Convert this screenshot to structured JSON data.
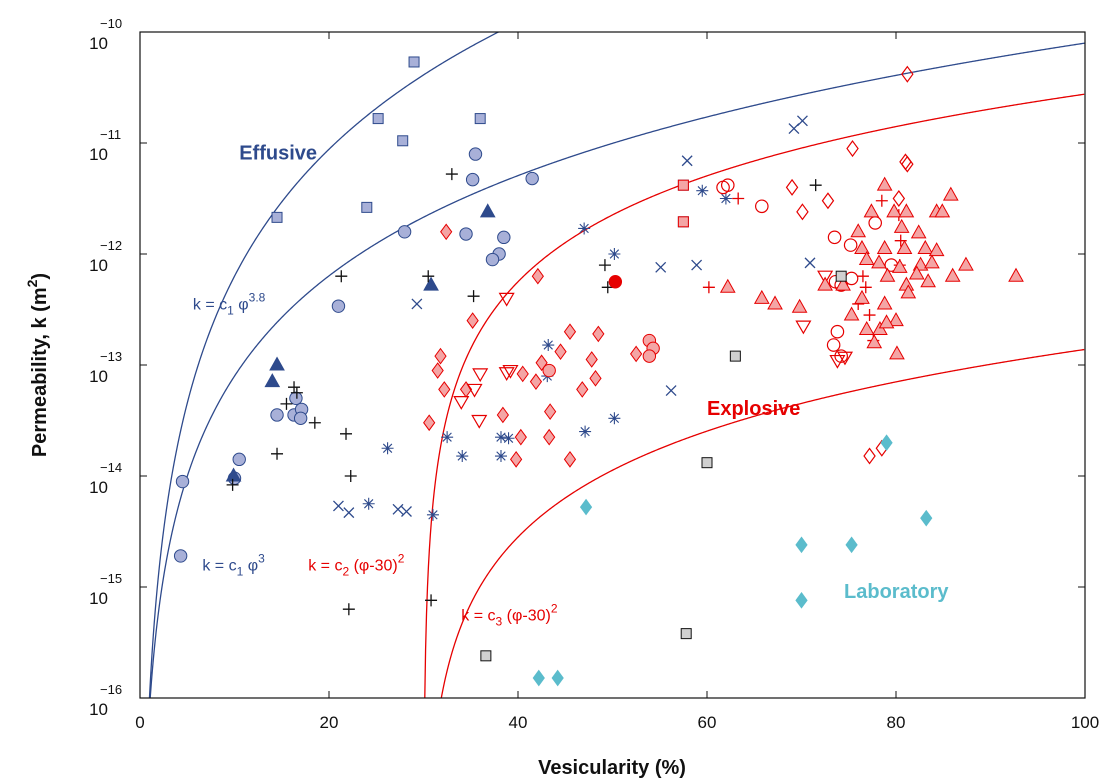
{
  "chart_data": {
    "type": "scatter",
    "xlabel": "Vesicularity (%)",
    "ylabel": {
      "base": "Permeability, k (m",
      "exp": "2",
      "close": ")"
    },
    "xlim": [
      0,
      100
    ],
    "ylim_exponent": [
      -16,
      -10
    ],
    "y_scale": "log10",
    "grid": false,
    "x_ticks": [
      "0",
      "20",
      "40",
      "60",
      "80",
      "100"
    ],
    "y_ticks": [
      {
        "base": "10",
        "exp": "−16",
        "value": -16
      },
      {
        "base": "10",
        "exp": "−15",
        "value": -15
      },
      {
        "base": "10",
        "exp": "−14",
        "value": -14
      },
      {
        "base": "10",
        "exp": "−13",
        "value": -13
      },
      {
        "base": "10",
        "exp": "−12",
        "value": -12
      },
      {
        "base": "10",
        "exp": "−11",
        "value": -11
      },
      {
        "base": "10",
        "exp": "−10",
        "value": -10
      }
    ],
    "region_labels": [
      {
        "text": "Effusive",
        "x": 10.5,
        "y": -11.15,
        "color": "#2e4a8c"
      },
      {
        "text": "Explosive",
        "x": 60,
        "y": -13.45,
        "color": "#e60000"
      },
      {
        "text": "Laboratory",
        "x": 74.5,
        "y": -15.1,
        "color": "#5bbccc"
      }
    ],
    "equations": [
      {
        "base": "k = c",
        "sub": "1",
        "rest": " φ",
        "sup": "3.8",
        "tail": "",
        "x": 5.6,
        "y": -12.5,
        "color": "#2e4a8c"
      },
      {
        "base": "k = c",
        "sub": "1",
        "rest": " φ",
        "sup": "3",
        "tail": "",
        "x": 6.6,
        "y": -14.85,
        "color": "#2e4a8c"
      },
      {
        "base": "k = c",
        "sub": "2",
        "rest": " (φ-30)",
        "sup": "2",
        "tail": "",
        "x": 17.8,
        "y": -14.85,
        "color": "#e60000"
      },
      {
        "base": "k = c",
        "sub": "3",
        "rest": " (φ-30)",
        "sup": "2",
        "tail": "",
        "x": 34,
        "y": -15.3,
        "color": "#e60000"
      }
    ],
    "curves": [
      {
        "law": "power",
        "a": -16.0,
        "b": 3.8,
        "color": "#2e4a8c"
      },
      {
        "law": "power",
        "a": -16.1,
        "b": 3.0,
        "color": "#2e4a8c"
      },
      {
        "law": "shifted",
        "a": -14.25,
        "b": 2,
        "shift": 30,
        "color": "#e60000"
      },
      {
        "law": "shifted",
        "a": -16.55,
        "b": 2,
        "shift": 30,
        "color": "#e60000"
      }
    ],
    "series": [
      {
        "marker": "square-filled",
        "color": "#2e4a8c",
        "fill": "#a8b0d8",
        "points": [
          [
            29,
            -10.27
          ],
          [
            25.2,
            -10.78
          ],
          [
            36,
            -10.78
          ],
          [
            27.8,
            -10.98
          ],
          [
            24,
            -11.58
          ],
          [
            14.5,
            -11.67
          ],
          [
            57.5,
            -11.38
          ],
          [
            57.5,
            -11.71
          ]
        ]
      },
      {
        "marker": "circle-filled",
        "color": "#2e4a8c",
        "fill": "#a8b0d8",
        "points": [
          [
            35.5,
            -11.1
          ],
          [
            41.5,
            -11.32
          ],
          [
            35.2,
            -11.33
          ],
          [
            28,
            -11.8
          ],
          [
            34.5,
            -11.82
          ],
          [
            38.5,
            -11.85
          ],
          [
            38,
            -12.0
          ],
          [
            37.3,
            -12.05
          ],
          [
            21,
            -12.47
          ],
          [
            16.5,
            -13.3
          ],
          [
            14.5,
            -13.45
          ],
          [
            16.3,
            -13.45
          ],
          [
            17.1,
            -13.4
          ],
          [
            17,
            -13.48
          ],
          [
            10.5,
            -13.85
          ],
          [
            4.5,
            -14.05
          ],
          [
            10,
            -14.02
          ],
          [
            4.3,
            -14.72
          ]
        ]
      },
      {
        "marker": "triangle-filled",
        "color": "#2e4a8c",
        "fill": "#2e4a8c",
        "points": [
          [
            36.8,
            -11.62
          ],
          [
            30.8,
            -12.28
          ],
          [
            14.5,
            -13.0
          ],
          [
            14,
            -13.15
          ],
          [
            9.9,
            -14.0
          ]
        ]
      },
      {
        "marker": "plus",
        "color": "#111111",
        "points": [
          [
            33,
            -11.28
          ],
          [
            21.3,
            -12.2
          ],
          [
            30.5,
            -12.2
          ],
          [
            35.3,
            -12.38
          ],
          [
            49.2,
            -12.1
          ],
          [
            49.5,
            -12.3
          ],
          [
            16.3,
            -13.2
          ],
          [
            16.6,
            -13.25
          ],
          [
            15.5,
            -13.35
          ],
          [
            18.5,
            -13.52
          ],
          [
            21.8,
            -13.62
          ],
          [
            14.5,
            -13.8
          ],
          [
            22.3,
            -14.0
          ],
          [
            9.8,
            -14.08
          ],
          [
            30.8,
            -15.12
          ],
          [
            22.1,
            -15.2
          ],
          [
            71.5,
            -11.38
          ]
        ]
      },
      {
        "marker": "asterisk",
        "color": "#2e4a8c",
        "points": [
          [
            47,
            -11.77
          ],
          [
            50.2,
            -12.0
          ],
          [
            59.5,
            -11.43
          ],
          [
            62,
            -11.5
          ],
          [
            43.2,
            -12.82
          ],
          [
            43.1,
            -13.1
          ],
          [
            32.5,
            -13.65
          ],
          [
            38.2,
            -13.65
          ],
          [
            39,
            -13.66
          ],
          [
            26.2,
            -13.75
          ],
          [
            34.1,
            -13.82
          ],
          [
            38.2,
            -13.82
          ],
          [
            47.1,
            -13.6
          ],
          [
            50.2,
            -13.48
          ],
          [
            24.2,
            -14.25
          ],
          [
            31,
            -14.35
          ]
        ]
      },
      {
        "marker": "cross",
        "color": "#2e4a8c",
        "points": [
          [
            57.9,
            -11.16
          ],
          [
            69.2,
            -10.87
          ],
          [
            70.1,
            -10.8
          ],
          [
            55.1,
            -12.12
          ],
          [
            58.9,
            -12.1
          ],
          [
            70.9,
            -12.08
          ],
          [
            29.3,
            -12.45
          ],
          [
            56.2,
            -13.23
          ],
          [
            21,
            -14.27
          ],
          [
            22.1,
            -14.33
          ],
          [
            27.3,
            -14.3
          ],
          [
            28.2,
            -14.32
          ]
        ]
      },
      {
        "marker": "diamond-filled",
        "color": "#e60000",
        "fill": "#f4a5a5",
        "points": [
          [
            32.4,
            -11.8
          ],
          [
            42.1,
            -12.2
          ],
          [
            31.8,
            -12.92
          ],
          [
            35.2,
            -12.6
          ],
          [
            45.5,
            -12.7
          ],
          [
            44.5,
            -12.88
          ],
          [
            48.5,
            -12.72
          ],
          [
            47.8,
            -12.95
          ],
          [
            42.5,
            -12.98
          ],
          [
            31.5,
            -13.05
          ],
          [
            40.5,
            -13.08
          ],
          [
            32.2,
            -13.22
          ],
          [
            34.5,
            -13.22
          ],
          [
            46.8,
            -13.22
          ],
          [
            48.2,
            -13.12
          ],
          [
            38.4,
            -13.45
          ],
          [
            43.4,
            -13.42
          ],
          [
            41.9,
            -13.15
          ],
          [
            30.6,
            -13.52
          ],
          [
            52.5,
            -12.9
          ],
          [
            40.3,
            -13.65
          ],
          [
            43.3,
            -13.65
          ],
          [
            39.8,
            -13.85
          ],
          [
            45.5,
            -13.85
          ]
        ]
      },
      {
        "marker": "circle-filled",
        "color": "#e60000",
        "fill": "#f4a5a5",
        "points": [
          [
            53.9,
            -12.78
          ],
          [
            54.3,
            -12.85
          ],
          [
            53.9,
            -12.92
          ],
          [
            43.3,
            -13.05
          ]
        ]
      },
      {
        "marker": "circle-filled",
        "color": "#e60000",
        "fill": "#e60000",
        "points": [
          [
            50.3,
            -12.25
          ]
        ]
      },
      {
        "marker": "square-filled",
        "color": "#e60000",
        "fill": "#f4a5a5",
        "points": [
          [
            57.5,
            -11.38
          ],
          [
            57.5,
            -11.71
          ]
        ]
      },
      {
        "marker": "triangle-down",
        "color": "#e60000",
        "points": [
          [
            38.8,
            -12.4
          ],
          [
            72.5,
            -12.2
          ],
          [
            70.2,
            -12.65
          ],
          [
            36,
            -13.08
          ],
          [
            35.4,
            -13.22
          ],
          [
            34,
            -13.33
          ],
          [
            35.9,
            -13.5
          ],
          [
            39.2,
            -13.05
          ],
          [
            38.8,
            -13.07
          ],
          [
            74.6,
            -12.93
          ],
          [
            73.8,
            -12.96
          ]
        ]
      },
      {
        "marker": "plus",
        "color": "#e60000",
        "points": [
          [
            63.3,
            -11.5
          ],
          [
            78.5,
            -11.52
          ],
          [
            80.3,
            -11.65
          ],
          [
            80.5,
            -11.88
          ],
          [
            60.2,
            -12.3
          ],
          [
            76.5,
            -12.2
          ],
          [
            76.8,
            -12.3
          ],
          [
            76,
            -12.45
          ],
          [
            77.2,
            -12.55
          ],
          [
            77.6,
            -12.78
          ],
          [
            80.4,
            -12.1
          ]
        ]
      },
      {
        "marker": "circle-open",
        "color": "#e60000",
        "points": [
          [
            61.7,
            -11.4
          ],
          [
            62.2,
            -11.38
          ],
          [
            65.8,
            -11.57
          ],
          [
            77.8,
            -11.72
          ],
          [
            73.5,
            -11.85
          ],
          [
            75.2,
            -11.92
          ],
          [
            73.6,
            -12.25
          ],
          [
            74.2,
            -12.28
          ],
          [
            75.3,
            -12.22
          ],
          [
            73.8,
            -12.7
          ],
          [
            74.2,
            -12.92
          ],
          [
            73.4,
            -12.82
          ],
          [
            79.5,
            -12.1
          ]
        ]
      },
      {
        "marker": "diamond-open",
        "color": "#e60000",
        "points": [
          [
            81.2,
            -10.38
          ],
          [
            75.4,
            -11.05
          ],
          [
            81,
            -11.17
          ],
          [
            81.2,
            -11.19
          ],
          [
            69,
            -11.4
          ],
          [
            70.1,
            -11.62
          ],
          [
            72.8,
            -11.52
          ],
          [
            80.3,
            -11.5
          ],
          [
            77.2,
            -13.82
          ],
          [
            78.5,
            -13.75
          ]
        ]
      },
      {
        "marker": "triangle-filled",
        "color": "#e60000",
        "fill": "#f4a5a5",
        "points": [
          [
            78.8,
            -11.38
          ],
          [
            85.8,
            -11.47
          ],
          [
            77.4,
            -11.62
          ],
          [
            79.8,
            -11.62
          ],
          [
            81.1,
            -11.62
          ],
          [
            84.3,
            -11.62
          ],
          [
            84.9,
            -11.62
          ],
          [
            76,
            -11.8
          ],
          [
            80.6,
            -11.76
          ],
          [
            82.4,
            -11.81
          ],
          [
            76.4,
            -11.95
          ],
          [
            78.8,
            -11.95
          ],
          [
            80.9,
            -11.95
          ],
          [
            83.1,
            -11.95
          ],
          [
            84.3,
            -11.97
          ],
          [
            76.9,
            -12.05
          ],
          [
            78.2,
            -12.08
          ],
          [
            80.4,
            -12.12
          ],
          [
            82.6,
            -12.1
          ],
          [
            83.8,
            -12.08
          ],
          [
            87.4,
            -12.1
          ],
          [
            79.1,
            -12.2
          ],
          [
            82.2,
            -12.18
          ],
          [
            86,
            -12.2
          ],
          [
            92.7,
            -12.2
          ],
          [
            72.5,
            -12.28
          ],
          [
            74.4,
            -12.28
          ],
          [
            81.1,
            -12.28
          ],
          [
            83.4,
            -12.25
          ],
          [
            62.2,
            -12.3
          ],
          [
            81.3,
            -12.35
          ],
          [
            65.8,
            -12.4
          ],
          [
            67.2,
            -12.45
          ],
          [
            69.8,
            -12.48
          ],
          [
            76.4,
            -12.4
          ],
          [
            75.3,
            -12.55
          ],
          [
            78.8,
            -12.45
          ],
          [
            80,
            -12.6
          ],
          [
            76.9,
            -12.68
          ],
          [
            78.3,
            -12.68
          ],
          [
            77.7,
            -12.8
          ],
          [
            80.1,
            -12.9
          ],
          [
            79,
            -12.62
          ]
        ]
      },
      {
        "marker": "square-filled",
        "color": "#111111",
        "fill": "#d0d0d0",
        "points": [
          [
            74.2,
            -12.2
          ],
          [
            63,
            -12.92
          ],
          [
            60,
            -13.88
          ],
          [
            57.8,
            -15.42
          ],
          [
            36.6,
            -15.62
          ]
        ]
      },
      {
        "marker": "diamond-filled",
        "color": "#5bbccc",
        "fill": "#5bbccc",
        "points": [
          [
            79,
            -13.7
          ],
          [
            47.2,
            -14.28
          ],
          [
            83.2,
            -14.38
          ],
          [
            70,
            -14.62
          ],
          [
            75.3,
            -14.62
          ],
          [
            70,
            -15.12
          ],
          [
            42.2,
            -15.82
          ],
          [
            44.2,
            -15.82
          ]
        ]
      }
    ]
  }
}
